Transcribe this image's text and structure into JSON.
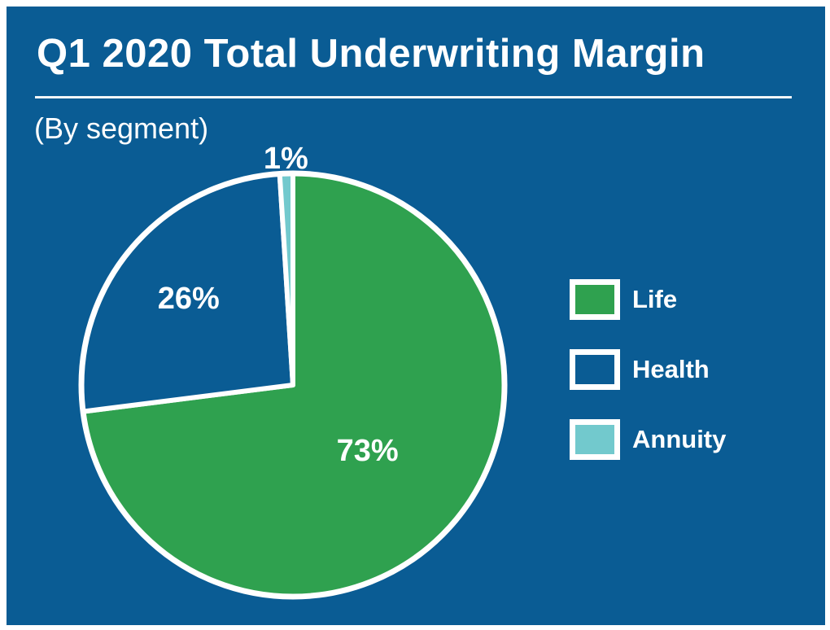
{
  "header": {
    "title": "Q1 2020 Total Underwriting Margin",
    "subtitle": "(By segment)"
  },
  "colors": {
    "background_blue": "#0A5C94",
    "frame_white": "#FFFFFF",
    "slice_border": "#FFFFFF",
    "percent_label": "#FFFFFF"
  },
  "chart_data": {
    "type": "pie",
    "title": "Q1 2020 Total Underwriting Margin",
    "subtitle": "(By segment)",
    "start_angle": "12-oclock",
    "direction": "clockwise",
    "legend_position": "right",
    "slice_border_color": "#FFFFFF",
    "slices": [
      {
        "label": "Life",
        "value": 73,
        "display": "73%",
        "color": "#2FA14F",
        "label_placement": "inside",
        "label_r_frac": 0.47
      },
      {
        "label": "Health",
        "value": 26,
        "display": "26%",
        "color": "#0A5C94",
        "label_placement": "inside",
        "label_r_frac": 0.64
      },
      {
        "label": "Annuity",
        "value": 1,
        "display": "1%",
        "color": "#72C9CD",
        "label_placement": "outside"
      }
    ]
  }
}
